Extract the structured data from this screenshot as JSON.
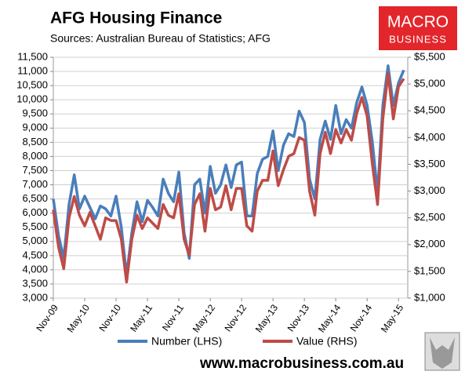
{
  "chart_data": {
    "type": "line",
    "title": "AFG Housing Finance",
    "subtitle": "Sources: Australian Bureau of Statistics; AFG",
    "logo": [
      "MACRO",
      "BUSINESS"
    ],
    "footer": "www.macrobusiness.com.au",
    "categories": [
      "Nov-09",
      null,
      null,
      null,
      null,
      null,
      "May-10",
      null,
      null,
      null,
      null,
      null,
      "Nov-10",
      null,
      null,
      null,
      null,
      null,
      "May-11",
      null,
      null,
      null,
      null,
      null,
      "Nov-11",
      null,
      null,
      null,
      null,
      null,
      "May-12",
      null,
      null,
      null,
      null,
      null,
      "Nov-12",
      null,
      null,
      null,
      null,
      null,
      "May-13",
      null,
      null,
      null,
      null,
      null,
      "Nov-13",
      null,
      null,
      null,
      null,
      null,
      "May-14",
      null,
      null,
      null,
      null,
      null,
      "Nov-14",
      null,
      null,
      null,
      null,
      null,
      "May-15",
      null
    ],
    "series": [
      {
        "name": "Number (LHS)",
        "color": "#4a7ebb",
        "values": [
          6500,
          5200,
          4400,
          6300,
          7350,
          6150,
          6600,
          6200,
          5800,
          6250,
          6150,
          5900,
          6600,
          5500,
          3800,
          5300,
          6400,
          5700,
          6450,
          6200,
          5900,
          7200,
          6700,
          6400,
          7450,
          5300,
          4400,
          7000,
          7200,
          6000,
          7650,
          6700,
          7000,
          7700,
          6900,
          7700,
          7800,
          5900,
          5900,
          7400,
          7900,
          8000,
          8900,
          7500,
          8400,
          8800,
          8700,
          9600,
          9200,
          7200,
          6500,
          8600,
          9250,
          8600,
          9800,
          8800,
          9300,
          9000,
          9900,
          10450,
          9800,
          8500,
          6700,
          9800,
          11200,
          9800,
          10600,
          11050
        ]
      },
      {
        "name": "Value (RHS)",
        "color": "#be4b48",
        "axis": "y2",
        "values": [
          2650,
          1950,
          1550,
          2500,
          2900,
          2550,
          2350,
          2600,
          2350,
          2100,
          2500,
          2450,
          2450,
          2100,
          1300,
          2100,
          2550,
          2300,
          2500,
          2400,
          2300,
          2750,
          2550,
          2500,
          2950,
          2100,
          1800,
          2750,
          2950,
          2250,
          3050,
          2650,
          2700,
          3100,
          2650,
          3050,
          3050,
          2350,
          2250,
          3000,
          3200,
          3200,
          3750,
          3100,
          3400,
          3650,
          3700,
          4000,
          3950,
          3000,
          2550,
          3700,
          4100,
          3700,
          4150,
          3900,
          4150,
          3950,
          4450,
          4750,
          4400,
          3500,
          2750,
          4350,
          5200,
          4350,
          4950,
          5100
        ]
      }
    ],
    "ylim": [
      3000,
      11500
    ],
    "yticks": [
      {
        "value": 3000,
        "label": "3,000"
      },
      {
        "value": 3500,
        "label": "3,500"
      },
      {
        "value": 4000,
        "label": "4,000"
      },
      {
        "value": 4500,
        "label": "4,500"
      },
      {
        "value": 5000,
        "label": "5,000"
      },
      {
        "value": 5500,
        "label": "5,500"
      },
      {
        "value": 6000,
        "label": "6,000"
      },
      {
        "value": 6500,
        "label": "6,500"
      },
      {
        "value": 7000,
        "label": "7,000"
      },
      {
        "value": 7500,
        "label": "7,500"
      },
      {
        "value": 8000,
        "label": "8,000"
      },
      {
        "value": 8500,
        "label": "8,500"
      },
      {
        "value": 9000,
        "label": "9,000"
      },
      {
        "value": 9500,
        "label": "9,500"
      },
      {
        "value": 10000,
        "label": "10,000"
      },
      {
        "value": 10500,
        "label": "10,500"
      },
      {
        "value": 11000,
        "label": "11,000"
      },
      {
        "value": 11500,
        "label": "11,500"
      }
    ],
    "y2lim": [
      1000,
      5500
    ],
    "y2ticks": [
      {
        "value": 1000,
        "label": "$1,000"
      },
      {
        "value": 1500,
        "label": "$1,500"
      },
      {
        "value": 2000,
        "label": "$2,000"
      },
      {
        "value": 2500,
        "label": "$2,500"
      },
      {
        "value": 3000,
        "label": "$3,000"
      },
      {
        "value": 3500,
        "label": "$3,500"
      },
      {
        "value": 4000,
        "label": "$4,000"
      },
      {
        "value": 4500,
        "label": "$4,500"
      },
      {
        "value": 5000,
        "label": "$5,000"
      },
      {
        "value": 5500,
        "label": "$5,500"
      }
    ],
    "grid": true,
    "legend": "bottom"
  }
}
